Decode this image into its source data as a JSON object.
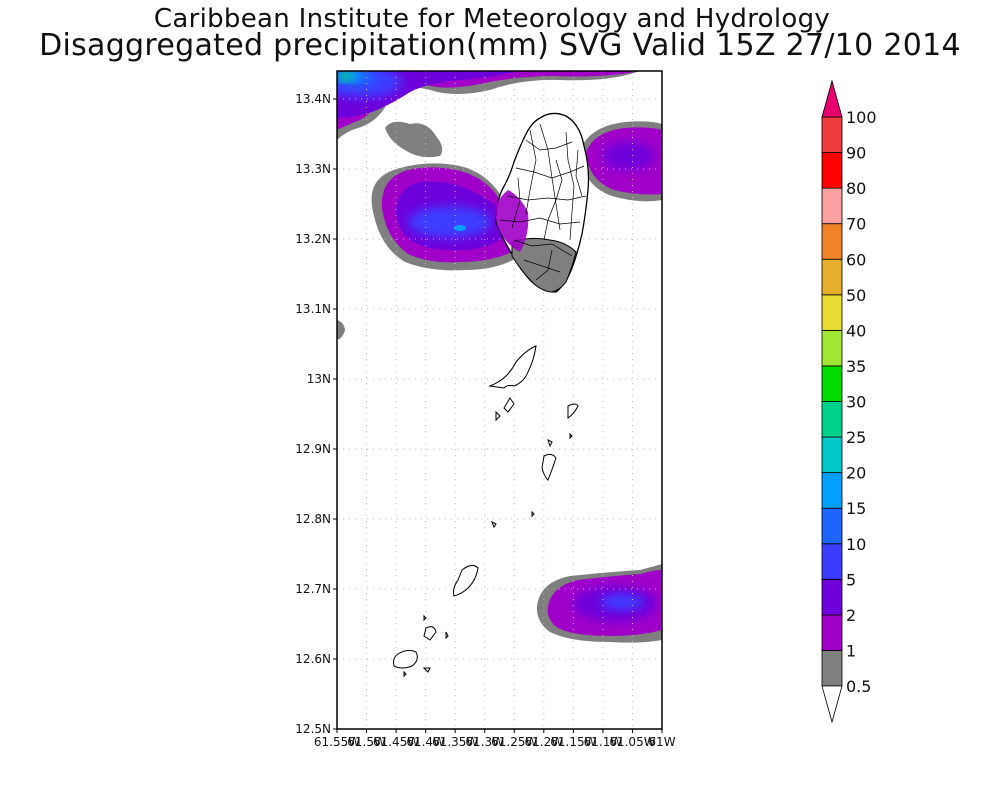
{
  "title": {
    "line1": "Caribbean Institute for Meteorology and Hydrology",
    "line2": "Disaggregated precipitation(mm) SVG Valid 15Z 27/10 2014"
  },
  "map": {
    "lat_labels": [
      "13.4N",
      "13.3N",
      "13.2N",
      "13.1N",
      "13N",
      "12.9N",
      "12.8N",
      "12.7N",
      "12.6N",
      "12.5N"
    ],
    "lon_labels": [
      "61.55W",
      "61.5W",
      "61.45W",
      "61.4W",
      "61.35W",
      "61.3W",
      "61.25W",
      "61.2W",
      "61.15W",
      "61.1W",
      "61.05W",
      "61W"
    ],
    "lat_range": [
      12.5,
      13.44
    ],
    "lon_range": [
      -61.55,
      -61.0
    ],
    "grid": true,
    "land_color": "#ffffff",
    "outline_color": "#000000"
  },
  "colorbar": {
    "levels": [
      "0.5",
      "1",
      "2",
      "5",
      "10",
      "15",
      "20",
      "25",
      "30",
      "35",
      "40",
      "50",
      "60",
      "70",
      "80",
      "90",
      "100"
    ],
    "colors": [
      "#7f7f7f",
      "#a000c8",
      "#6e00dc",
      "#3c3cff",
      "#1e64ff",
      "#00a0ff",
      "#00c8c8",
      "#00d28c",
      "#00dc00",
      "#a0e632",
      "#e6dc32",
      "#e6af2d",
      "#f08228",
      "#faa0a0",
      "#ff0000",
      "#f03c3c",
      "#e6006e"
    ],
    "below_color": "#ffffff",
    "above_color": "#e6006e"
  }
}
